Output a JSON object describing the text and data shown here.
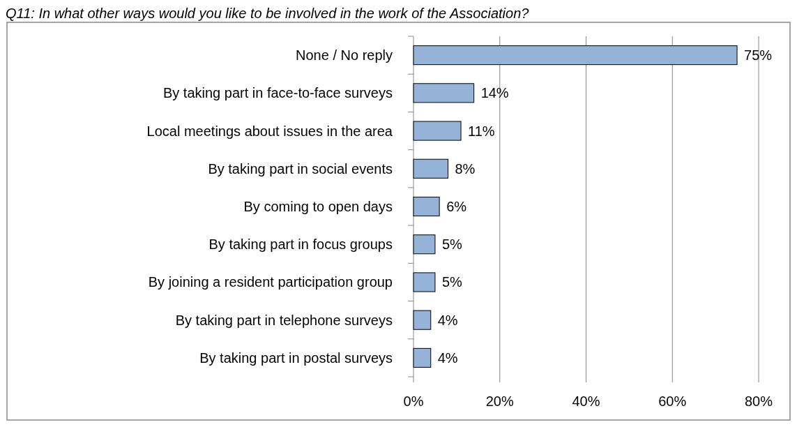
{
  "chart_data": {
    "type": "bar",
    "orientation": "horizontal",
    "title": "Q11: In what other ways would you like to be involved in the work of the Association?",
    "categories": [
      "None / No reply",
      "By taking part in face-to-face surveys",
      "Local meetings about issues in the area",
      "By taking part in social events",
      "By coming to open days",
      "By taking part in focus groups",
      "By joining a resident participation group",
      "By taking part in telephone surveys",
      "By taking part in postal surveys"
    ],
    "values": [
      75,
      14,
      11,
      8,
      6,
      5,
      5,
      4,
      4
    ],
    "value_labels": [
      "75%",
      "14%",
      "11%",
      "8%",
      "6%",
      "5%",
      "5%",
      "4%",
      "4%"
    ],
    "color": "#95b3d7",
    "xlim": [
      0,
      80
    ],
    "xticks": [
      {
        "value": 0,
        "label": "0%"
      },
      {
        "value": 20,
        "label": "20%"
      },
      {
        "value": 40,
        "label": "40%"
      },
      {
        "value": 60,
        "label": "60%"
      },
      {
        "value": 80,
        "label": "80%"
      }
    ],
    "grid": "x"
  }
}
